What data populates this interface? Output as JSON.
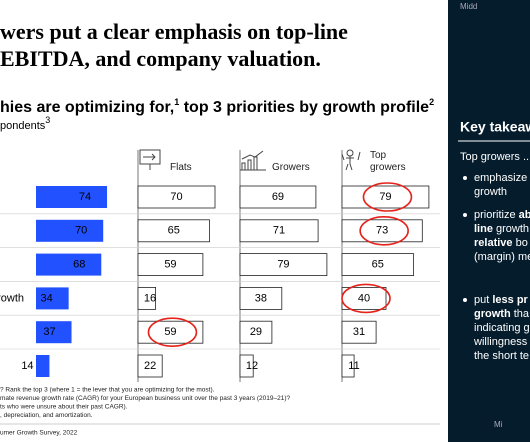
{
  "slide": {
    "title": [
      "wers put a clear emphasis on top-line",
      "EBITDA, and company valuation."
    ],
    "subtitle": [
      "hies are optimizing for,",
      "1",
      " top 3 priorities by growth profile",
      "2"
    ],
    "subtitle2": [
      "pondents",
      "3"
    ],
    "footnotes": [
      "? Rank the top 3 (where 1 = the lever that you are optimizing for the most).",
      "mate revenue growth rate (CAGR) for your European business unit over the past 3 years (2019–21)?",
      "ts who were unsure about their past CAGR).",
      ", depreciation, and amortization."
    ],
    "source": "umer Growth Survey, 2022"
  },
  "chart_data": {
    "type": "bar",
    "categories": [
      null,
      null,
      null,
      "rowth",
      null,
      null
    ],
    "highlight_color": "#e5231b",
    "series": [
      {
        "color": "#2251ff",
        "values": [
          74,
          70,
          68,
          34,
          37,
          14
        ]
      },
      {
        "name": [
          "Flats"
        ],
        "color": "#ffffff",
        "values": [
          70,
          65,
          59,
          16,
          59,
          22
        ],
        "highlighted": [
          false,
          false,
          false,
          false,
          true,
          false
        ]
      },
      {
        "name": [
          "Growers"
        ],
        "color": "#ffffff",
        "values": [
          69,
          71,
          79,
          38,
          29,
          12
        ],
        "highlighted": [
          false,
          false,
          false,
          false,
          false,
          false
        ]
      },
      {
        "name": [
          "Top",
          "growers"
        ],
        "color": "#ffffff",
        "values": [
          79,
          73,
          65,
          40,
          31,
          11
        ],
        "highlighted": [
          true,
          true,
          false,
          true,
          false,
          false
        ]
      }
    ]
  },
  "panel": {
    "corner": "Midd",
    "heading": "Key takeaw",
    "intro": "Top growers ...",
    "bullets": [
      [
        [
          {
            "text": "emphasize"
          }
        ],
        [
          {
            "text": "growth"
          }
        ]
      ],
      [
        [
          {
            "text": "prioritize "
          },
          {
            "text": "ab",
            "bold": true
          }
        ],
        [
          {
            "text": "line",
            "bold": true
          },
          {
            "text": " growth"
          }
        ],
        [
          {
            "text": "relative",
            "bold": true
          },
          {
            "text": " bo"
          }
        ],
        [
          {
            "text": "(margin) me"
          }
        ]
      ],
      [
        [
          {
            "text": "put "
          },
          {
            "text": "less pr",
            "bold": true
          }
        ],
        [
          {
            "text": "growth",
            "bold": true
          },
          {
            "text": " tha"
          }
        ],
        [
          {
            "text": "indicating g"
          }
        ],
        [
          {
            "text": "willingness"
          }
        ],
        [
          {
            "text": "the short te"
          }
        ]
      ]
    ],
    "footer": "Mi"
  }
}
